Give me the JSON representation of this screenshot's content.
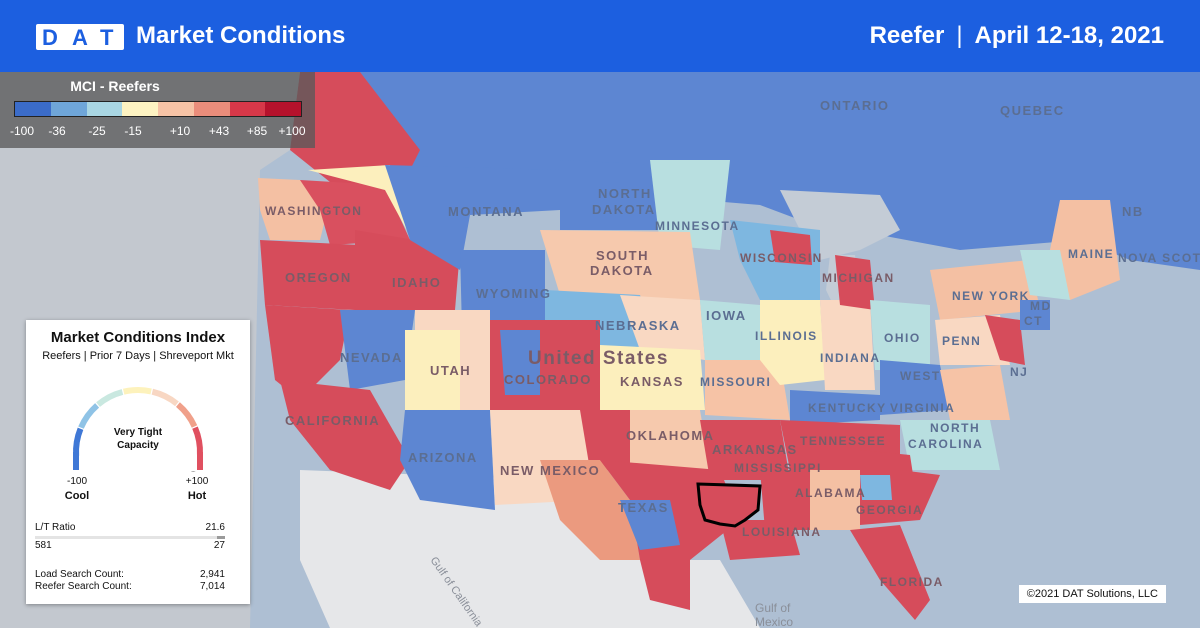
{
  "header": {
    "logo_text": "DAT",
    "title": "Market Conditions",
    "equipment": "Reefer",
    "separator": "|",
    "date_range": "April 12-18, 2021"
  },
  "legend": {
    "title": "MCI - Reefers",
    "ticks": [
      "-100",
      "-36",
      "-25",
      "-15",
      "+10",
      "+43",
      "+85",
      "+100"
    ],
    "colors": [
      "#3b6cc9",
      "#6fa6d9",
      "#a9d6e3",
      "#fdf3c2",
      "#f6c3a6",
      "#ea8d7b",
      "#d63849",
      "#b5122c"
    ]
  },
  "index_card": {
    "title": "Market Conditions Index",
    "subtitle": "Reefers | Prior 7 Days | Shreveport Mkt",
    "gauge_label_line1": "Very Tight",
    "gauge_label_line2": "Capacity",
    "gauge_value": 100,
    "min_label": "-100",
    "max_label": "+100",
    "cool_label": "Cool",
    "hot_label": "Hot",
    "lt_ratio_label": "L/T Ratio",
    "lt_ratio_value": "21.6",
    "loads_value": "581",
    "trucks_value": "27",
    "load_search_label": "Load Search Count:",
    "load_search_value": "2,941",
    "reefer_search_label": "Reefer Search Count:",
    "reefer_search_value": "7,014"
  },
  "map_labels": [
    "ONTARIO",
    "QUEBEC",
    "NORTH",
    "DAKOTA",
    "MONTANA",
    "WASHINGTON",
    "OREGON",
    "IDAHO",
    "WYOMING",
    "SOUTH",
    "DAKOTA",
    "MINNESOTA",
    "WISCONSIN",
    "MICHIGAN",
    "NEBRASKA",
    "IOWA",
    "ILLINOIS",
    "INDIANA",
    "OHIO",
    "NEW YORK",
    "PENN",
    "MAINE",
    "NB",
    "NOVA SCOTIA",
    "NEVADA",
    "UTAH",
    "COLORADO",
    "KANSAS",
    "MISSOURI",
    "KENTUCKY",
    "WEST",
    "VIRGINIA",
    "CALIFORNIA",
    "ARIZONA",
    "NEW MEXICO",
    "OKLAHOMA",
    "ARKANSAS",
    "TENNESSEE",
    "NORTH",
    "CAROLINA",
    "MISSISSIPPI",
    "ALABAMA",
    "GEORGIA",
    "TEXAS",
    "LOUISIANA",
    "FLORIDA",
    "United States",
    "Gulf of California",
    "Gulf of",
    "Mexico",
    "NJ",
    "CT",
    "MD"
  ],
  "copyright": "©2021 DAT Solutions, LLC"
}
